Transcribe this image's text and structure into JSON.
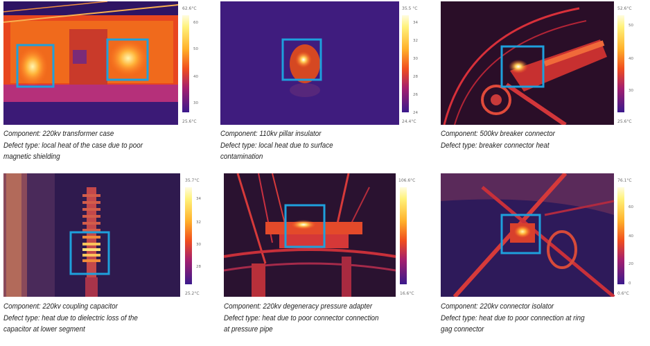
{
  "panels": [
    {
      "component": "Component: 220kv transformer case",
      "defect_lines": [
        "Defect type: local heat of the case due to poor",
        "magnetic shielding"
      ],
      "scale": {
        "max": "62.6°C",
        "min": "25.6°C",
        "ticks": [
          "60",
          "50",
          "40",
          "30"
        ]
      }
    },
    {
      "component": "Component: 110kv pillar insulator",
      "defect_lines": [
        "Defect type: local heat due to surface",
        "contamination"
      ],
      "scale": {
        "max": "35.5 °C",
        "min": "24.4°C",
        "ticks": [
          "34",
          "32",
          "30",
          "28",
          "26",
          "24"
        ]
      }
    },
    {
      "component": "Component: 500kv breaker connector",
      "defect_lines": [
        "Defect type: breaker connector heat"
      ],
      "scale": {
        "max": "52.6°C",
        "min": "25.6°C",
        "ticks": [
          "50",
          "40",
          "30"
        ]
      }
    },
    {
      "component": "Component: 220kv coupling capacitor",
      "defect_lines": [
        "Defect type: heat due to dielectric loss of the",
        "capacitor at lower segment"
      ],
      "scale": {
        "max": "35.7°C",
        "min": "25.2°C",
        "ticks": [
          "34",
          "32",
          "30",
          "28"
        ]
      }
    },
    {
      "component": "Component: 220kv degeneracy pressure adapter",
      "defect_lines": [
        "Defect type: heat due to poor connector connection",
        "at pressure pipe"
      ],
      "scale": {
        "max": "106.6°C",
        "min": "16.6°C",
        "ticks": []
      }
    },
    {
      "component": "Component: 220kv connector isolator",
      "defect_lines": [
        "Defect type: heat due to poor connection at ring",
        "gag connector"
      ],
      "scale": {
        "max": "76.1°C",
        "min": "0.6°C",
        "ticks": [
          "60",
          "40",
          "20",
          "0"
        ]
      }
    }
  ],
  "colors": {
    "highlight_box": "#1ea0dc",
    "background_purple": "#3a1668",
    "hot_orange": "#f06a14"
  }
}
